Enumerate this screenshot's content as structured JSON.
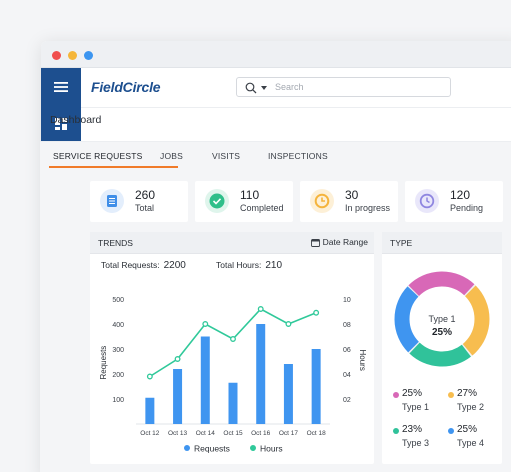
{
  "header": {
    "logo": "FieldCircle",
    "search_placeholder": "Search"
  },
  "breadcrumb": "Dashboard",
  "tabs": [
    "SERVICE REQUESTS",
    "JOBS",
    "VISITS",
    "INSPECTIONS"
  ],
  "active_tab": "SERVICE REQUESTS",
  "stats": [
    {
      "value": "260",
      "label": "Total",
      "icon": "list-icon",
      "color": "#3f8ee8",
      "bg": "#e3eefc"
    },
    {
      "value": "110",
      "label": "Completed",
      "icon": "check-circle-icon",
      "color": "#2fbf8a",
      "bg": "#dff5ec"
    },
    {
      "value": "30",
      "label": "In progress",
      "icon": "progress-icon",
      "color": "#f5b43c",
      "bg": "#fdf0d7"
    },
    {
      "value": "120",
      "label": "Pending",
      "icon": "clock-icon",
      "color": "#8f86e0",
      "bg": "#e9e7fa"
    }
  ],
  "trends": {
    "title": "TRENDS",
    "date_range_label": "Date Range",
    "total_requests_label": "Total Requests:",
    "total_requests_value": "2200",
    "total_hours_label": "Total Hours:",
    "total_hours_value": "210"
  },
  "type_panel": {
    "title": "TYPE",
    "center_label": "Type 1",
    "center_value": "25%",
    "legend": [
      {
        "pct": "25%",
        "name": "Type 1",
        "color": "#d868b7"
      },
      {
        "pct": "27%",
        "name": "Type 2",
        "color": "#f7bd4f"
      },
      {
        "pct": "23%",
        "name": "Type 3",
        "color": "#30c29a"
      },
      {
        "pct": "25%",
        "name": "Type 4",
        "color": "#3f95f0"
      }
    ]
  },
  "chart_data": [
    {
      "type": "bar+line",
      "categories": [
        "Oct 12",
        "Oct 13",
        "Oct 14",
        "Oct 15",
        "Oct 16",
        "Oct 17",
        "Oct 18"
      ],
      "series": [
        {
          "name": "Requests",
          "type": "bar",
          "axis": "left",
          "color": "#3f95f0",
          "values": [
            105,
            220,
            350,
            165,
            400,
            240,
            300
          ]
        },
        {
          "name": "Hours",
          "type": "line",
          "axis": "right",
          "color": "#30c99a",
          "values": [
            3.8,
            5.2,
            8.0,
            6.8,
            9.2,
            8.0,
            8.9
          ]
        }
      ],
      "ylabel": "Requests",
      "y2label": "Hours",
      "ylim": [
        0,
        500
      ],
      "y2lim": [
        0,
        10
      ],
      "yticks": [
        "100",
        "200",
        "300",
        "400",
        "500"
      ],
      "y2ticks": [
        "02",
        "04",
        "06",
        "08",
        "10"
      ],
      "legend_position": "bottom"
    },
    {
      "type": "pie",
      "donut": true,
      "categories": [
        "Type 1",
        "Type 2",
        "Type 3",
        "Type 4"
      ],
      "values": [
        25,
        27,
        23,
        25
      ],
      "colors": [
        "#d868b7",
        "#f7bd4f",
        "#30c29a",
        "#3f95f0"
      ]
    }
  ]
}
